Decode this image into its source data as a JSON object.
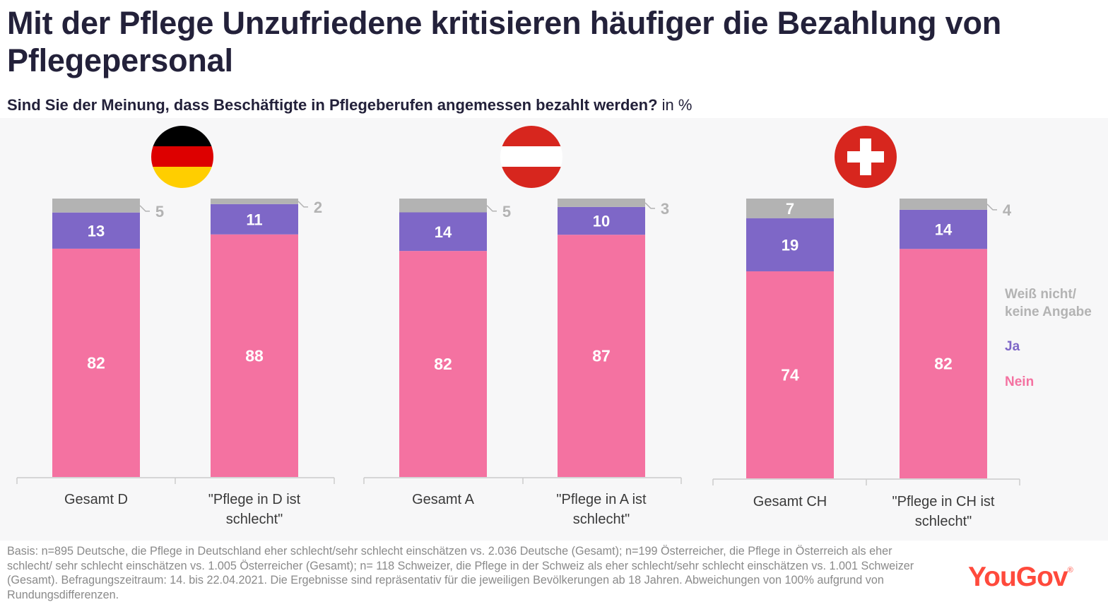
{
  "header": {
    "title": "Mit der Pflege Unzufriedene kritisieren häufiger die Bezahlung von Pflegepersonal",
    "question": "Sind Sie der Meinung, dass Beschäftigte in Pflegeberufen angemessen bezahlt werden?",
    "unit": "in %"
  },
  "colors": {
    "nein": "#f472a1",
    "ja": "#7e67c7",
    "weiss_nicht": "#b3b3b3",
    "labels_light": "#b3b3b3"
  },
  "chart_data": {
    "type": "bar",
    "stacked": true,
    "orientation": "vertical",
    "groups": [
      {
        "country": "Deutschland",
        "flag": "de-flag-icon",
        "categories": [
          "Gesamt D",
          "\"Pflege in D ist schlecht\""
        ]
      },
      {
        "country": "Österreich",
        "flag": "at-flag-icon",
        "categories": [
          "Gesamt A",
          "\"Pflege in A ist schlecht\""
        ]
      },
      {
        "country": "Schweiz",
        "flag": "ch-flag-icon",
        "categories": [
          "Gesamt CH",
          "\"Pflege in CH ist schlecht\""
        ]
      }
    ],
    "categories": [
      "Gesamt D",
      "\"Pflege in D ist schlecht\"",
      "Gesamt A",
      "\"Pflege in A ist schlecht\"",
      "Gesamt CH",
      "\"Pflege in CH ist schlecht\""
    ],
    "category_lines": [
      [
        "Gesamt D"
      ],
      [
        "\"Pflege in D ist",
        "schlecht\""
      ],
      [
        "Gesamt A"
      ],
      [
        "\"Pflege in A ist",
        "schlecht\""
      ],
      [
        "Gesamt CH"
      ],
      [
        "\"Pflege in CH ist",
        "schlecht\""
      ]
    ],
    "series": [
      {
        "name": "Nein",
        "values": [
          82,
          88,
          82,
          87,
          74,
          82
        ]
      },
      {
        "name": "Ja",
        "values": [
          13,
          11,
          14,
          10,
          19,
          14
        ]
      },
      {
        "name": "Weiß nicht/ keine Angabe",
        "values": [
          5,
          2,
          5,
          3,
          7,
          4
        ]
      }
    ],
    "ylim": [
      0,
      100
    ],
    "legend": {
      "position": "right",
      "entries": [
        "Weiß nicht/",
        "keine Angabe",
        "Ja",
        "Nein"
      ]
    }
  },
  "footnote": "Basis: n=895 Deutsche, die Pflege in Deutschland eher schlecht/sehr schlecht einschätzen vs. 2.036 Deutsche (Gesamt); n=199 Österreicher, die Pflege in Österreich als eher schlecht/ sehr schlecht einschätzen vs. 1.005 Österreicher (Gesamt); n= 118 Schweizer, die Pflege in der Schweiz als eher schlecht/sehr schlecht einschätzen vs. 1.001 Schweizer (Gesamt). Befragungszeitraum: 14. bis 22.04.2021. Die Ergebnisse sind repräsentativ für die jeweiligen Bevölkerungen ab 18 Jahren. Abweichungen von 100% aufgrund von Rundungsdifferenzen.",
  "brand": {
    "logo_text": "YouGov",
    "registered": "®"
  }
}
